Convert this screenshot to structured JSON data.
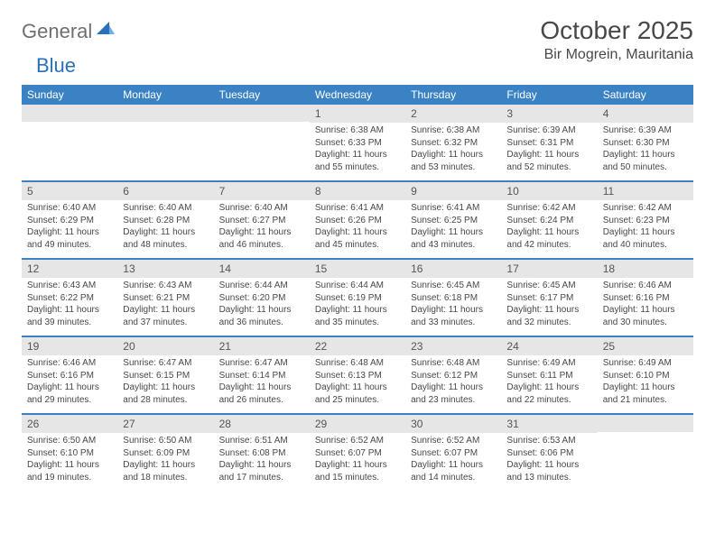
{
  "logo": {
    "word1": "General",
    "word2": "Blue"
  },
  "title": "October 2025",
  "location": "Bir Mogrein, Mauritania",
  "header_bg": "#3a82c4",
  "daynum_bg": "#e6e6e6",
  "weekdays": [
    "Sunday",
    "Monday",
    "Tuesday",
    "Wednesday",
    "Thursday",
    "Friday",
    "Saturday"
  ],
  "weeks": [
    [
      {
        "n": "",
        "lines": []
      },
      {
        "n": "",
        "lines": []
      },
      {
        "n": "",
        "lines": []
      },
      {
        "n": "1",
        "lines": [
          "Sunrise: 6:38 AM",
          "Sunset: 6:33 PM",
          "Daylight: 11 hours and 55 minutes."
        ]
      },
      {
        "n": "2",
        "lines": [
          "Sunrise: 6:38 AM",
          "Sunset: 6:32 PM",
          "Daylight: 11 hours and 53 minutes."
        ]
      },
      {
        "n": "3",
        "lines": [
          "Sunrise: 6:39 AM",
          "Sunset: 6:31 PM",
          "Daylight: 11 hours and 52 minutes."
        ]
      },
      {
        "n": "4",
        "lines": [
          "Sunrise: 6:39 AM",
          "Sunset: 6:30 PM",
          "Daylight: 11 hours and 50 minutes."
        ]
      }
    ],
    [
      {
        "n": "5",
        "lines": [
          "Sunrise: 6:40 AM",
          "Sunset: 6:29 PM",
          "Daylight: 11 hours and 49 minutes."
        ]
      },
      {
        "n": "6",
        "lines": [
          "Sunrise: 6:40 AM",
          "Sunset: 6:28 PM",
          "Daylight: 11 hours and 48 minutes."
        ]
      },
      {
        "n": "7",
        "lines": [
          "Sunrise: 6:40 AM",
          "Sunset: 6:27 PM",
          "Daylight: 11 hours and 46 minutes."
        ]
      },
      {
        "n": "8",
        "lines": [
          "Sunrise: 6:41 AM",
          "Sunset: 6:26 PM",
          "Daylight: 11 hours and 45 minutes."
        ]
      },
      {
        "n": "9",
        "lines": [
          "Sunrise: 6:41 AM",
          "Sunset: 6:25 PM",
          "Daylight: 11 hours and 43 minutes."
        ]
      },
      {
        "n": "10",
        "lines": [
          "Sunrise: 6:42 AM",
          "Sunset: 6:24 PM",
          "Daylight: 11 hours and 42 minutes."
        ]
      },
      {
        "n": "11",
        "lines": [
          "Sunrise: 6:42 AM",
          "Sunset: 6:23 PM",
          "Daylight: 11 hours and 40 minutes."
        ]
      }
    ],
    [
      {
        "n": "12",
        "lines": [
          "Sunrise: 6:43 AM",
          "Sunset: 6:22 PM",
          "Daylight: 11 hours and 39 minutes."
        ]
      },
      {
        "n": "13",
        "lines": [
          "Sunrise: 6:43 AM",
          "Sunset: 6:21 PM",
          "Daylight: 11 hours and 37 minutes."
        ]
      },
      {
        "n": "14",
        "lines": [
          "Sunrise: 6:44 AM",
          "Sunset: 6:20 PM",
          "Daylight: 11 hours and 36 minutes."
        ]
      },
      {
        "n": "15",
        "lines": [
          "Sunrise: 6:44 AM",
          "Sunset: 6:19 PM",
          "Daylight: 11 hours and 35 minutes."
        ]
      },
      {
        "n": "16",
        "lines": [
          "Sunrise: 6:45 AM",
          "Sunset: 6:18 PM",
          "Daylight: 11 hours and 33 minutes."
        ]
      },
      {
        "n": "17",
        "lines": [
          "Sunrise: 6:45 AM",
          "Sunset: 6:17 PM",
          "Daylight: 11 hours and 32 minutes."
        ]
      },
      {
        "n": "18",
        "lines": [
          "Sunrise: 6:46 AM",
          "Sunset: 6:16 PM",
          "Daylight: 11 hours and 30 minutes."
        ]
      }
    ],
    [
      {
        "n": "19",
        "lines": [
          "Sunrise: 6:46 AM",
          "Sunset: 6:16 PM",
          "Daylight: 11 hours and 29 minutes."
        ]
      },
      {
        "n": "20",
        "lines": [
          "Sunrise: 6:47 AM",
          "Sunset: 6:15 PM",
          "Daylight: 11 hours and 28 minutes."
        ]
      },
      {
        "n": "21",
        "lines": [
          "Sunrise: 6:47 AM",
          "Sunset: 6:14 PM",
          "Daylight: 11 hours and 26 minutes."
        ]
      },
      {
        "n": "22",
        "lines": [
          "Sunrise: 6:48 AM",
          "Sunset: 6:13 PM",
          "Daylight: 11 hours and 25 minutes."
        ]
      },
      {
        "n": "23",
        "lines": [
          "Sunrise: 6:48 AM",
          "Sunset: 6:12 PM",
          "Daylight: 11 hours and 23 minutes."
        ]
      },
      {
        "n": "24",
        "lines": [
          "Sunrise: 6:49 AM",
          "Sunset: 6:11 PM",
          "Daylight: 11 hours and 22 minutes."
        ]
      },
      {
        "n": "25",
        "lines": [
          "Sunrise: 6:49 AM",
          "Sunset: 6:10 PM",
          "Daylight: 11 hours and 21 minutes."
        ]
      }
    ],
    [
      {
        "n": "26",
        "lines": [
          "Sunrise: 6:50 AM",
          "Sunset: 6:10 PM",
          "Daylight: 11 hours and 19 minutes."
        ]
      },
      {
        "n": "27",
        "lines": [
          "Sunrise: 6:50 AM",
          "Sunset: 6:09 PM",
          "Daylight: 11 hours and 18 minutes."
        ]
      },
      {
        "n": "28",
        "lines": [
          "Sunrise: 6:51 AM",
          "Sunset: 6:08 PM",
          "Daylight: 11 hours and 17 minutes."
        ]
      },
      {
        "n": "29",
        "lines": [
          "Sunrise: 6:52 AM",
          "Sunset: 6:07 PM",
          "Daylight: 11 hours and 15 minutes."
        ]
      },
      {
        "n": "30",
        "lines": [
          "Sunrise: 6:52 AM",
          "Sunset: 6:07 PM",
          "Daylight: 11 hours and 14 minutes."
        ]
      },
      {
        "n": "31",
        "lines": [
          "Sunrise: 6:53 AM",
          "Sunset: 6:06 PM",
          "Daylight: 11 hours and 13 minutes."
        ]
      },
      {
        "n": "",
        "lines": []
      }
    ]
  ]
}
